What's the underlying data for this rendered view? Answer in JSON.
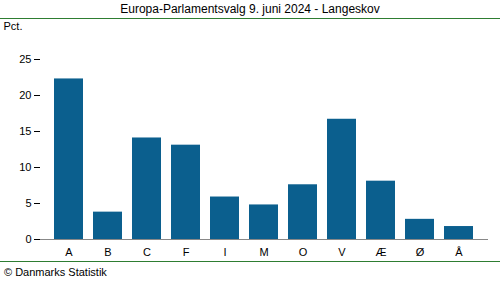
{
  "chart_data": {
    "type": "bar",
    "title": "Europa-Parlamentsvalg 9. juni 2024 - Langeskov",
    "y_label": "Pct.",
    "caption": "© Danmarks Statistik",
    "categories": [
      "A",
      "B",
      "C",
      "F",
      "I",
      "M",
      "O",
      "V",
      "Æ",
      "Ø",
      "Å"
    ],
    "values": [
      22.3,
      3.8,
      14.1,
      13.1,
      5.9,
      4.8,
      7.6,
      16.7,
      8.1,
      2.8,
      1.8
    ],
    "color": "#0b5f8e",
    "ylim": [
      0,
      25
    ],
    "yticks": [
      0,
      5,
      10,
      15,
      20,
      25
    ],
    "grid": false
  }
}
